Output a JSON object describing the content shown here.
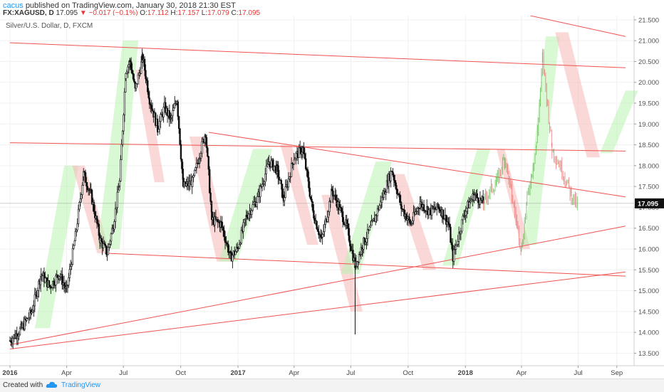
{
  "header": {
    "author": "cacus",
    "published": "published on TradingView.com, January 30, 2018 21:30 EST",
    "symbol": "FX:XAGUSD, D",
    "price": "17.095",
    "change": "−0.017 (−0.1%)",
    "open_label": "O:",
    "open": "17.112",
    "high_label": "H:",
    "high": "17.157",
    "low_label": "L:",
    "low": "17.079",
    "close_label": "C:",
    "close": "17.095"
  },
  "chart_title": "Silver/U.S. Dollar, D, FXCM",
  "footer": {
    "created_with": "Created with",
    "brand": "TradingView"
  },
  "colors": {
    "up_zone": "#b9f2b0",
    "down_zone": "#f8b8b8",
    "line": "#ef5350",
    "candle": "#111111",
    "proj_up": "#5ab54a",
    "proj_down": "#e86a6a",
    "price_tag": "#111111"
  },
  "chart_data": {
    "type": "line",
    "ylim": [
      13.2,
      21.6
    ],
    "x_start": "2016-01-01",
    "y_ticks": [
      "13.500",
      "14.000",
      "14.500",
      "15.000",
      "15.500",
      "16.000",
      "16.500",
      "17.000",
      "17.500",
      "18.000",
      "18.500",
      "19.000",
      "19.500",
      "20.000",
      "20.500",
      "21.000",
      "21.500"
    ],
    "x_ticks": [
      {
        "label": "2016",
        "date": "2016-01-01",
        "bold": true
      },
      {
        "label": "Apr",
        "date": "2016-04-01"
      },
      {
        "label": "Jul",
        "date": "2016-07-01"
      },
      {
        "label": "Oct",
        "date": "2016-10-01"
      },
      {
        "label": "2017",
        "date": "2017-01-01",
        "bold": true
      },
      {
        "label": "Apr",
        "date": "2017-04-01"
      },
      {
        "label": "Jul",
        "date": "2017-07-01"
      },
      {
        "label": "Oct",
        "date": "2017-10-01"
      },
      {
        "label": "2018",
        "date": "2018-01-01",
        "bold": true
      },
      {
        "label": "Apr",
        "date": "2018-04-01"
      },
      {
        "label": "Jul",
        "date": "2018-07-01"
      },
      {
        "label": "Sep",
        "date": "2018-09-01"
      }
    ],
    "last_price": 17.095,
    "price_series": [
      [
        "2016-01-01",
        13.8
      ],
      [
        "2016-01-20",
        14.1
      ],
      [
        "2016-02-05",
        14.5
      ],
      [
        "2016-02-20",
        15.4
      ],
      [
        "2016-03-05",
        15.1
      ],
      [
        "2016-03-20",
        15.4
      ],
      [
        "2016-04-01",
        15.0
      ],
      [
        "2016-04-15",
        16.3
      ],
      [
        "2016-04-28",
        17.8
      ],
      [
        "2016-05-10",
        17.3
      ],
      [
        "2016-05-25",
        16.2
      ],
      [
        "2016-06-05",
        15.9
      ],
      [
        "2016-06-15",
        16.6
      ],
      [
        "2016-06-25",
        17.6
      ],
      [
        "2016-07-05",
        20.3
      ],
      [
        "2016-07-12",
        20.5
      ],
      [
        "2016-07-20",
        19.8
      ],
      [
        "2016-08-01",
        20.6
      ],
      [
        "2016-08-12",
        19.6
      ],
      [
        "2016-08-25",
        18.9
      ],
      [
        "2016-09-05",
        19.4
      ],
      [
        "2016-09-15",
        19.1
      ],
      [
        "2016-09-25",
        19.6
      ],
      [
        "2016-10-05",
        17.5
      ],
      [
        "2016-10-20",
        17.6
      ],
      [
        "2016-11-01",
        18.3
      ],
      [
        "2016-11-10",
        18.8
      ],
      [
        "2016-11-20",
        16.7
      ],
      [
        "2016-12-05",
        16.6
      ],
      [
        "2016-12-20",
        15.8
      ],
      [
        "2016-12-31",
        16.0
      ],
      [
        "2017-01-15",
        16.8
      ],
      [
        "2017-02-01",
        17.2
      ],
      [
        "2017-02-20",
        18.1
      ],
      [
        "2017-03-05",
        17.9
      ],
      [
        "2017-03-15",
        17.2
      ],
      [
        "2017-04-01",
        18.2
      ],
      [
        "2017-04-15",
        18.4
      ],
      [
        "2017-05-01",
        16.9
      ],
      [
        "2017-05-15",
        16.2
      ],
      [
        "2017-06-01",
        17.4
      ],
      [
        "2017-06-15",
        16.9
      ],
      [
        "2017-06-25",
        16.5
      ],
      [
        "2017-07-08",
        15.6
      ],
      [
        "2017-07-20",
        16.1
      ],
      [
        "2017-08-05",
        16.6
      ],
      [
        "2017-08-20",
        17.2
      ],
      [
        "2017-09-05",
        17.9
      ],
      [
        "2017-09-20",
        17.0
      ],
      [
        "2017-10-05",
        16.6
      ],
      [
        "2017-10-20",
        17.1
      ],
      [
        "2017-11-05",
        16.9
      ],
      [
        "2017-11-20",
        17.0
      ],
      [
        "2017-12-05",
        16.6
      ],
      [
        "2017-12-12",
        15.8
      ],
      [
        "2017-12-31",
        16.9
      ],
      [
        "2018-01-15",
        17.3
      ],
      [
        "2018-01-30",
        17.1
      ]
    ],
    "projection_series": [
      [
        "2018-02-05",
        17.3
      ],
      [
        "2018-02-20",
        17.6
      ],
      [
        "2018-03-05",
        18.2
      ],
      [
        "2018-03-15",
        17.4
      ],
      [
        "2018-04-01",
        16.0
      ],
      [
        "2018-04-10",
        17.2
      ],
      [
        "2018-04-25",
        18.5
      ],
      [
        "2018-05-05",
        20.6
      ],
      [
        "2018-05-20",
        18.4
      ],
      [
        "2018-06-05",
        17.9
      ],
      [
        "2018-06-20",
        17.3
      ],
      [
        "2018-07-01",
        17.0
      ]
    ],
    "trend_lines": [
      [
        [
          "2016-01-01",
          20.95
        ],
        [
          "2018-09-15",
          20.35
        ]
      ],
      [
        [
          "2018-04-15",
          21.6
        ],
        [
          "2018-09-15",
          21.1
        ]
      ],
      [
        [
          "2016-01-01",
          18.55
        ],
        [
          "2018-09-15",
          18.35
        ]
      ],
      [
        [
          "2016-11-15",
          18.8
        ],
        [
          "2018-09-15",
          17.25
        ]
      ],
      [
        [
          "2016-01-01",
          13.7
        ],
        [
          "2018-09-15",
          16.55
        ]
      ],
      [
        [
          "2016-01-01",
          13.6
        ],
        [
          "2018-09-15",
          15.45
        ]
      ],
      [
        [
          "2016-06-01",
          15.9
        ],
        [
          "2018-09-15",
          15.35
        ]
      ]
    ],
    "zones": [
      {
        "dir": "up",
        "pts": [
          [
            "2016-02-10",
            14.1
          ],
          [
            "2016-03-05",
            14.1
          ],
          [
            "2016-04-20",
            18.0
          ],
          [
            "2016-03-28",
            18.0
          ]
        ]
      },
      {
        "dir": "down",
        "pts": [
          [
            "2016-04-10",
            18.0
          ],
          [
            "2016-04-30",
            18.0
          ],
          [
            "2016-06-10",
            15.9
          ],
          [
            "2016-05-20",
            15.9
          ]
        ]
      },
      {
        "dir": "up",
        "pts": [
          [
            "2016-05-20",
            16.0
          ],
          [
            "2016-06-25",
            16.0
          ],
          [
            "2016-07-25",
            21.0
          ],
          [
            "2016-06-30",
            21.0
          ]
        ]
      },
      {
        "dir": "down",
        "pts": [
          [
            "2016-07-20",
            20.3
          ],
          [
            "2016-08-05",
            20.3
          ],
          [
            "2016-09-05",
            17.6
          ],
          [
            "2016-08-20",
            17.6
          ]
        ]
      },
      {
        "dir": "down",
        "pts": [
          [
            "2016-10-15",
            18.7
          ],
          [
            "2016-11-05",
            18.7
          ],
          [
            "2016-12-20",
            15.7
          ],
          [
            "2016-11-28",
            15.7
          ]
        ]
      },
      {
        "dir": "up",
        "pts": [
          [
            "2016-12-01",
            15.7
          ],
          [
            "2016-12-31",
            15.7
          ],
          [
            "2017-02-25",
            18.4
          ],
          [
            "2017-01-25",
            18.4
          ]
        ]
      },
      {
        "dir": "down",
        "pts": [
          [
            "2017-03-10",
            18.5
          ],
          [
            "2017-03-28",
            18.5
          ],
          [
            "2017-05-10",
            16.1
          ],
          [
            "2017-04-22",
            16.1
          ]
        ]
      },
      {
        "dir": "down",
        "pts": [
          [
            "2017-05-15",
            17.3
          ],
          [
            "2017-06-05",
            17.3
          ],
          [
            "2017-07-20",
            14.5
          ],
          [
            "2017-07-01",
            14.5
          ]
        ]
      },
      {
        "dir": "up",
        "pts": [
          [
            "2017-06-15",
            15.4
          ],
          [
            "2017-07-15",
            15.4
          ],
          [
            "2017-09-05",
            18.1
          ],
          [
            "2017-08-10",
            18.1
          ]
        ]
      },
      {
        "dir": "down",
        "pts": [
          [
            "2017-09-05",
            17.8
          ],
          [
            "2017-09-25",
            17.8
          ],
          [
            "2017-11-15",
            15.5
          ],
          [
            "2017-10-25",
            15.5
          ]
        ]
      },
      {
        "dir": "up",
        "pts": [
          [
            "2017-11-25",
            15.6
          ],
          [
            "2017-12-20",
            15.6
          ],
          [
            "2018-02-10",
            18.4
          ],
          [
            "2018-01-20",
            18.4
          ]
        ]
      },
      {
        "dir": "down",
        "pts": [
          [
            "2018-02-20",
            18.4
          ],
          [
            "2018-03-05",
            18.4
          ],
          [
            "2018-04-15",
            16.0
          ],
          [
            "2018-04-02",
            16.0
          ]
        ]
      },
      {
        "dir": "up",
        "pts": [
          [
            "2018-04-05",
            16.1
          ],
          [
            "2018-04-25",
            16.1
          ],
          [
            "2018-06-01",
            21.1
          ],
          [
            "2018-05-10",
            21.1
          ]
        ]
      },
      {
        "dir": "down",
        "pts": [
          [
            "2018-05-25",
            21.2
          ],
          [
            "2018-06-15",
            21.2
          ],
          [
            "2018-08-05",
            18.2
          ],
          [
            "2018-07-15",
            18.2
          ]
        ]
      },
      {
        "dir": "up",
        "pts": [
          [
            "2018-08-05",
            18.3
          ],
          [
            "2018-08-25",
            18.3
          ],
          [
            "2018-10-05",
            19.8
          ],
          [
            "2018-09-15",
            19.8
          ]
        ]
      }
    ]
  }
}
